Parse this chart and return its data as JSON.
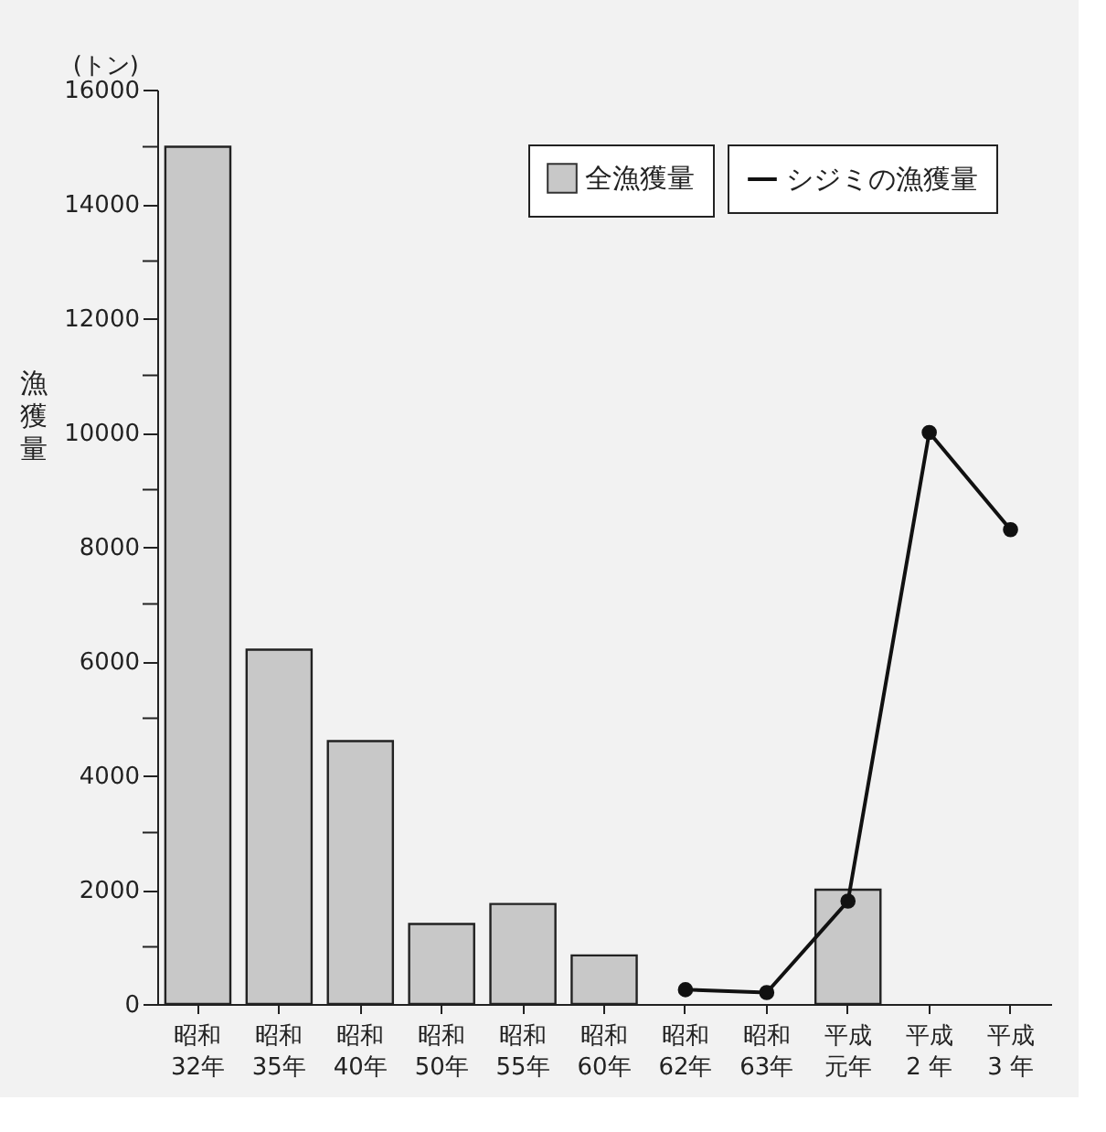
{
  "chart_data": {
    "type": "bar",
    "categories": [
      "昭和32年",
      "昭和35年",
      "昭和40年",
      "昭和50年",
      "昭和55年",
      "昭和60年",
      "昭和62年",
      "昭和63年",
      "平成元年",
      "平成2 年",
      "平成3 年"
    ],
    "series": [
      {
        "name": "全漁獲量",
        "color": "#c8c8c8",
        "values": [
          15000,
          6200,
          4600,
          1400,
          1750,
          850,
          null,
          null,
          2000,
          null,
          null
        ]
      },
      {
        "name": "シジミの漁獲量",
        "type": "line",
        "color": "#111111",
        "marker": "circle",
        "values": [
          null,
          null,
          null,
          null,
          null,
          null,
          250,
          200,
          1800,
          10000,
          8300
        ]
      }
    ],
    "ylabel": "漁獲量",
    "annotations": [
      "(トン)"
    ],
    "ylim": [
      0,
      16000
    ],
    "yticks": [
      0,
      {
        "value": 1000,
        "label": null
      },
      2000,
      {
        "value": 3000,
        "label": null
      },
      4000,
      {
        "value": 5000,
        "label": null
      },
      6000,
      {
        "value": 7000,
        "label": null
      },
      8000,
      {
        "value": 9000,
        "label": null
      },
      10000,
      {
        "value": 11000,
        "label": null
      },
      12000,
      {
        "value": 13000,
        "label": null
      },
      14000,
      {
        "value": 15000,
        "label": null
      },
      16000
    ],
    "grid": false,
    "legend": "top right"
  }
}
